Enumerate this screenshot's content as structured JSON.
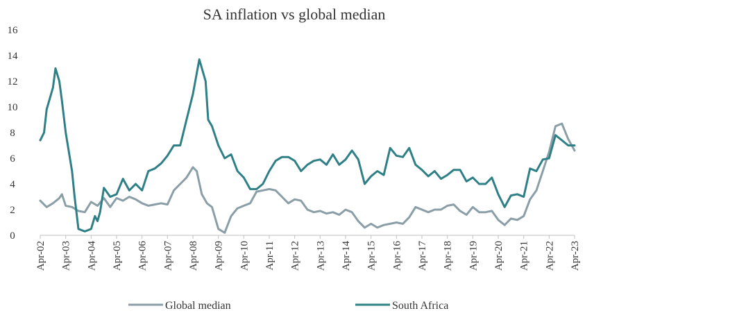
{
  "chart_data": {
    "type": "line",
    "title": "SA inflation vs global median",
    "xlabel": "",
    "ylabel": "",
    "ylim": [
      0,
      16
    ],
    "yticks": [
      "0",
      "2",
      "4",
      "6",
      "8",
      "10",
      "12",
      "14",
      "16"
    ],
    "xticks": [
      "Apr-02",
      "Apr-03",
      "Apr-04",
      "Apr-05",
      "Apr-06",
      "Apr-07",
      "Apr-08",
      "Apr-09",
      "Apr-10",
      "Apr-11",
      "Apr-12",
      "Apr-13",
      "Apr-14",
      "Apr-15",
      "Apr-16",
      "Apr-17",
      "Apr-18",
      "Apr-19",
      "Apr-20",
      "Apr-21",
      "Apr-22",
      "Apr-23"
    ],
    "grid": false,
    "legend_position": "bottom",
    "series": [
      {
        "name": "Global median",
        "color": "#8a9ea8",
        "points": [
          [
            2002.25,
            2.7
          ],
          [
            2002.5,
            2.2
          ],
          [
            2002.75,
            2.5
          ],
          [
            2003.0,
            2.9
          ],
          [
            2003.1,
            3.2
          ],
          [
            2003.25,
            2.3
          ],
          [
            2003.5,
            2.2
          ],
          [
            2003.75,
            1.9
          ],
          [
            2004.0,
            1.8
          ],
          [
            2004.25,
            2.6
          ],
          [
            2004.5,
            2.3
          ],
          [
            2004.75,
            2.9
          ],
          [
            2005.0,
            2.2
          ],
          [
            2005.25,
            2.9
          ],
          [
            2005.5,
            2.7
          ],
          [
            2005.75,
            3.0
          ],
          [
            2006.0,
            2.8
          ],
          [
            2006.25,
            2.5
          ],
          [
            2006.5,
            2.3
          ],
          [
            2006.75,
            2.4
          ],
          [
            2007.0,
            2.5
          ],
          [
            2007.25,
            2.4
          ],
          [
            2007.5,
            3.5
          ],
          [
            2007.75,
            4.0
          ],
          [
            2008.0,
            4.5
          ],
          [
            2008.25,
            5.3
          ],
          [
            2008.4,
            5.0
          ],
          [
            2008.6,
            3.2
          ],
          [
            2008.8,
            2.5
          ],
          [
            2009.0,
            2.2
          ],
          [
            2009.25,
            0.5
          ],
          [
            2009.5,
            0.2
          ],
          [
            2009.75,
            1.5
          ],
          [
            2010.0,
            2.1
          ],
          [
            2010.25,
            2.3
          ],
          [
            2010.5,
            2.5
          ],
          [
            2010.75,
            3.4
          ],
          [
            2011.0,
            3.5
          ],
          [
            2011.25,
            3.6
          ],
          [
            2011.5,
            3.5
          ],
          [
            2011.75,
            3.0
          ],
          [
            2012.0,
            2.5
          ],
          [
            2012.25,
            2.8
          ],
          [
            2012.5,
            2.7
          ],
          [
            2012.75,
            2.0
          ],
          [
            2013.0,
            1.8
          ],
          [
            2013.25,
            1.9
          ],
          [
            2013.5,
            1.7
          ],
          [
            2013.75,
            1.8
          ],
          [
            2014.0,
            1.6
          ],
          [
            2014.25,
            2.0
          ],
          [
            2014.5,
            1.8
          ],
          [
            2014.75,
            1.1
          ],
          [
            2015.0,
            0.6
          ],
          [
            2015.25,
            0.9
          ],
          [
            2015.5,
            0.6
          ],
          [
            2015.75,
            0.8
          ],
          [
            2016.0,
            0.9
          ],
          [
            2016.25,
            1.0
          ],
          [
            2016.5,
            0.9
          ],
          [
            2016.75,
            1.4
          ],
          [
            2017.0,
            2.2
          ],
          [
            2017.25,
            2.0
          ],
          [
            2017.5,
            1.8
          ],
          [
            2017.75,
            2.0
          ],
          [
            2018.0,
            2.0
          ],
          [
            2018.25,
            2.3
          ],
          [
            2018.5,
            2.4
          ],
          [
            2018.75,
            1.9
          ],
          [
            2019.0,
            1.6
          ],
          [
            2019.25,
            2.2
          ],
          [
            2019.5,
            1.8
          ],
          [
            2019.75,
            1.8
          ],
          [
            2020.0,
            1.9
          ],
          [
            2020.25,
            1.2
          ],
          [
            2020.5,
            0.8
          ],
          [
            2020.75,
            1.3
          ],
          [
            2021.0,
            1.2
          ],
          [
            2021.25,
            1.5
          ],
          [
            2021.5,
            2.8
          ],
          [
            2021.75,
            3.5
          ],
          [
            2022.0,
            5.0
          ],
          [
            2022.25,
            6.5
          ],
          [
            2022.5,
            8.5
          ],
          [
            2022.75,
            8.7
          ],
          [
            2023.0,
            7.5
          ],
          [
            2023.25,
            6.6
          ]
        ]
      },
      {
        "name": "South Africa",
        "color": "#2e7f86",
        "points": [
          [
            2002.25,
            7.4
          ],
          [
            2002.4,
            8.0
          ],
          [
            2002.5,
            9.8
          ],
          [
            2002.75,
            11.5
          ],
          [
            2002.85,
            13.0
          ],
          [
            2003.0,
            12.0
          ],
          [
            2003.1,
            10.5
          ],
          [
            2003.25,
            8.0
          ],
          [
            2003.5,
            5.0
          ],
          [
            2003.6,
            3.0
          ],
          [
            2003.75,
            0.5
          ],
          [
            2004.0,
            0.3
          ],
          [
            2004.25,
            0.5
          ],
          [
            2004.4,
            1.5
          ],
          [
            2004.5,
            1.1
          ],
          [
            2004.6,
            1.8
          ],
          [
            2004.75,
            3.7
          ],
          [
            2005.0,
            3.0
          ],
          [
            2005.25,
            3.2
          ],
          [
            2005.5,
            4.4
          ],
          [
            2005.75,
            3.5
          ],
          [
            2006.0,
            4.0
          ],
          [
            2006.25,
            3.5
          ],
          [
            2006.5,
            5.0
          ],
          [
            2006.75,
            5.2
          ],
          [
            2007.0,
            5.6
          ],
          [
            2007.25,
            6.2
          ],
          [
            2007.5,
            7.0
          ],
          [
            2007.75,
            7.0
          ],
          [
            2008.0,
            9.0
          ],
          [
            2008.25,
            11.0
          ],
          [
            2008.5,
            13.7
          ],
          [
            2008.75,
            12.0
          ],
          [
            2008.85,
            9.0
          ],
          [
            2009.0,
            8.5
          ],
          [
            2009.25,
            7.0
          ],
          [
            2009.5,
            6.0
          ],
          [
            2009.75,
            6.3
          ],
          [
            2010.0,
            5.0
          ],
          [
            2010.25,
            4.5
          ],
          [
            2010.5,
            3.6
          ],
          [
            2010.75,
            3.6
          ],
          [
            2011.0,
            4.0
          ],
          [
            2011.25,
            5.0
          ],
          [
            2011.5,
            5.8
          ],
          [
            2011.75,
            6.1
          ],
          [
            2012.0,
            6.1
          ],
          [
            2012.25,
            5.8
          ],
          [
            2012.5,
            5.0
          ],
          [
            2012.75,
            5.5
          ],
          [
            2013.0,
            5.8
          ],
          [
            2013.25,
            5.9
          ],
          [
            2013.5,
            5.5
          ],
          [
            2013.75,
            6.3
          ],
          [
            2014.0,
            5.5
          ],
          [
            2014.25,
            5.9
          ],
          [
            2014.5,
            6.6
          ],
          [
            2014.75,
            5.9
          ],
          [
            2015.0,
            4.0
          ],
          [
            2015.25,
            4.6
          ],
          [
            2015.5,
            5.0
          ],
          [
            2015.75,
            4.7
          ],
          [
            2016.0,
            6.8
          ],
          [
            2016.25,
            6.2
          ],
          [
            2016.5,
            6.1
          ],
          [
            2016.75,
            6.8
          ],
          [
            2017.0,
            5.5
          ],
          [
            2017.25,
            5.1
          ],
          [
            2017.5,
            4.6
          ],
          [
            2017.75,
            5.0
          ],
          [
            2018.0,
            4.4
          ],
          [
            2018.25,
            4.7
          ],
          [
            2018.5,
            5.1
          ],
          [
            2018.75,
            5.1
          ],
          [
            2019.0,
            4.2
          ],
          [
            2019.25,
            4.5
          ],
          [
            2019.5,
            4.0
          ],
          [
            2019.75,
            4.0
          ],
          [
            2020.0,
            4.5
          ],
          [
            2020.25,
            3.2
          ],
          [
            2020.5,
            2.2
          ],
          [
            2020.75,
            3.1
          ],
          [
            2021.0,
            3.2
          ],
          [
            2021.25,
            3.0
          ],
          [
            2021.5,
            5.2
          ],
          [
            2021.75,
            5.0
          ],
          [
            2022.0,
            5.9
          ],
          [
            2022.25,
            6.0
          ],
          [
            2022.5,
            7.8
          ],
          [
            2022.75,
            7.4
          ],
          [
            2023.0,
            7.0
          ],
          [
            2023.25,
            7.0
          ]
        ]
      }
    ]
  }
}
